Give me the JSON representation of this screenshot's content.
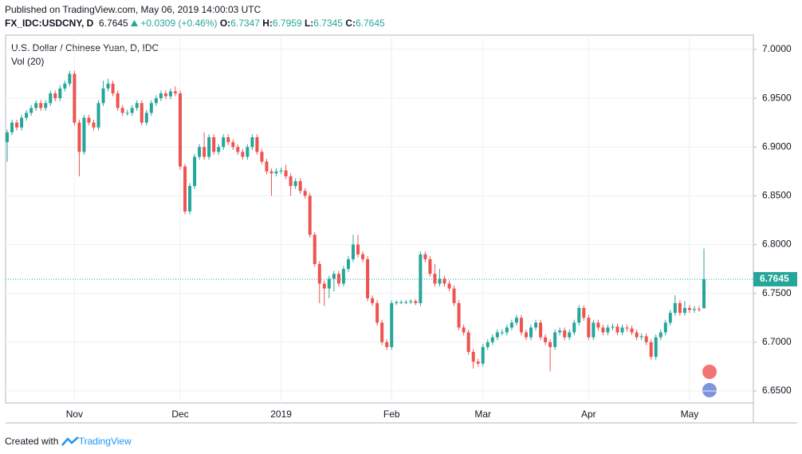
{
  "header": {
    "published": "Published on TradingView.com, May 06, 2019 14:00:03 UTC",
    "symbol": "FX_IDC:USDCNY, D",
    "change": "+0.0309 (+0.46%)",
    "o": "O:",
    "h": "H:",
    "l": "L:",
    "c": "C:"
  },
  "footer": {
    "created": "Created with",
    "brand": "TradingView"
  },
  "chart_data": {
    "type": "candlestick",
    "title": "U.S. Dollar / Chinese Yuan, D, IDC",
    "indicator": "Vol (20)",
    "colors": {
      "up": "#26a69a",
      "down": "#ef5350"
    },
    "grid": true,
    "last_price_line": true,
    "ylim": [
      6.6377,
      7.0147
    ],
    "yticks": [
      {
        "value": 6.65,
        "label": "6.6500"
      },
      {
        "value": 6.7,
        "label": "6.7000"
      },
      {
        "value": 6.75,
        "label": "6.7500"
      },
      {
        "value": 6.8,
        "label": "6.8000"
      },
      {
        "value": 6.85,
        "label": "6.8500"
      },
      {
        "value": 6.9,
        "label": "6.9000"
      },
      {
        "value": 6.95,
        "label": "6.9500"
      },
      {
        "value": 7.0,
        "label": "7.0000"
      }
    ],
    "categories": [
      null,
      null,
      null,
      null,
      null,
      null,
      null,
      null,
      null,
      null,
      null,
      null,
      null,
      null,
      "Nov",
      null,
      null,
      null,
      null,
      null,
      null,
      null,
      null,
      null,
      null,
      null,
      null,
      null,
      null,
      null,
      null,
      null,
      null,
      null,
      null,
      null,
      "Dec",
      null,
      null,
      null,
      null,
      null,
      null,
      null,
      null,
      null,
      null,
      null,
      null,
      null,
      null,
      null,
      null,
      null,
      null,
      null,
      null,
      "2019",
      null,
      null,
      null,
      null,
      null,
      null,
      null,
      null,
      null,
      null,
      null,
      null,
      null,
      null,
      null,
      null,
      null,
      null,
      null,
      null,
      null,
      null,
      "Feb",
      null,
      null,
      null,
      null,
      null,
      null,
      null,
      null,
      null,
      null,
      null,
      null,
      null,
      null,
      null,
      null,
      null,
      null,
      "Mar",
      null,
      null,
      null,
      null,
      null,
      null,
      null,
      null,
      null,
      null,
      null,
      null,
      null,
      null,
      null,
      null,
      null,
      null,
      null,
      null,
      null,
      "Apr",
      null,
      null,
      null,
      null,
      null,
      null,
      null,
      null,
      null,
      null,
      null,
      null,
      null,
      null,
      null,
      null,
      null,
      null,
      null,
      null,
      "May",
      null,
      null,
      null
    ],
    "open": [
      6.905,
      6.915,
      6.925,
      6.92,
      6.93,
      6.935,
      6.94,
      6.945,
      6.94,
      6.945,
      6.955,
      6.95,
      6.96,
      6.965,
      6.975,
      6.925,
      6.895,
      6.93,
      6.925,
      6.92,
      6.945,
      6.96,
      6.965,
      6.955,
      6.94,
      6.935,
      6.935,
      6.94,
      6.945,
      6.925,
      6.935,
      6.945,
      6.95,
      6.955,
      6.952,
      6.957,
      6.955,
      6.88,
      6.834,
      6.86,
      6.89,
      6.9,
      6.89,
      6.91,
      6.895,
      6.9,
      6.91,
      6.905,
      6.9,
      6.895,
      6.89,
      6.9,
      6.91,
      6.895,
      6.885,
      6.875,
      6.873,
      6.875,
      6.876,
      6.87,
      6.86,
      6.865,
      6.855,
      6.85,
      6.81,
      6.78,
      6.76,
      6.755,
      6.765,
      6.77,
      6.76,
      6.775,
      6.785,
      6.8,
      6.79,
      6.785,
      6.745,
      6.74,
      6.72,
      6.7,
      6.695,
      6.74,
      6.741,
      6.741,
      6.741,
      6.742,
      6.74,
      6.79,
      6.785,
      6.77,
      6.76,
      6.765,
      6.76,
      6.755,
      6.74,
      6.715,
      6.71,
      6.69,
      6.68,
      6.678,
      6.695,
      6.7,
      6.705,
      6.71,
      6.71,
      6.715,
      6.72,
      6.725,
      6.71,
      6.705,
      6.715,
      6.72,
      6.705,
      6.7,
      6.695,
      6.71,
      6.712,
      6.705,
      6.71,
      6.72,
      6.735,
      6.725,
      6.705,
      6.72,
      6.715,
      6.71,
      6.715,
      6.716,
      6.71,
      6.715,
      6.714,
      6.71,
      6.705,
      6.706,
      6.7,
      6.685,
      6.705,
      6.71,
      6.72,
      6.73,
      6.74,
      6.73,
      6.735,
      6.733,
      6.734,
      6.7347
    ],
    "high": [
      6.918,
      6.928,
      6.928,
      6.933,
      6.938,
      6.943,
      6.948,
      6.948,
      6.948,
      6.958,
      6.958,
      6.963,
      6.968,
      6.978,
      6.978,
      6.928,
      6.933,
      6.933,
      6.928,
      6.948,
      6.968,
      6.97,
      6.968,
      6.958,
      6.943,
      6.938,
      6.943,
      6.948,
      6.948,
      6.938,
      6.948,
      6.953,
      6.958,
      6.958,
      6.96,
      6.962,
      6.958,
      6.883,
      6.863,
      6.893,
      6.903,
      6.915,
      6.913,
      6.913,
      6.903,
      6.913,
      6.913,
      6.908,
      6.903,
      6.898,
      6.903,
      6.913,
      6.913,
      6.898,
      6.888,
      6.878,
      6.878,
      6.879,
      6.882,
      6.873,
      6.868,
      6.868,
      6.858,
      6.853,
      6.813,
      6.783,
      6.763,
      6.768,
      6.773,
      6.773,
      6.778,
      6.788,
      6.81,
      6.81,
      6.793,
      6.788,
      6.748,
      6.743,
      6.723,
      6.703,
      6.743,
      6.743,
      6.743,
      6.743,
      6.744,
      6.744,
      6.793,
      6.793,
      6.788,
      6.78,
      6.775,
      6.768,
      6.763,
      6.758,
      6.743,
      6.718,
      6.713,
      6.693,
      6.683,
      6.698,
      6.703,
      6.708,
      6.713,
      6.713,
      6.718,
      6.723,
      6.728,
      6.728,
      6.713,
      6.718,
      6.723,
      6.723,
      6.708,
      6.703,
      6.713,
      6.715,
      6.715,
      6.713,
      6.723,
      6.738,
      6.738,
      6.728,
      6.723,
      6.723,
      6.718,
      6.718,
      6.719,
      6.719,
      6.718,
      6.718,
      6.717,
      6.713,
      6.709,
      6.709,
      6.703,
      6.708,
      6.713,
      6.723,
      6.733,
      6.748,
      6.743,
      6.742,
      6.738,
      6.737,
      6.737,
      6.7959
    ],
    "low": [
      6.885,
      6.912,
      6.917,
      6.917,
      6.927,
      6.932,
      6.937,
      6.937,
      6.937,
      6.942,
      6.947,
      6.947,
      6.957,
      6.962,
      6.922,
      6.87,
      6.892,
      6.922,
      6.917,
      6.917,
      6.942,
      6.957,
      6.952,
      6.937,
      6.932,
      6.932,
      6.932,
      6.937,
      6.922,
      6.922,
      6.932,
      6.942,
      6.947,
      6.949,
      6.949,
      6.952,
      6.877,
      6.831,
      6.831,
      6.857,
      6.887,
      6.887,
      6.887,
      6.892,
      6.892,
      6.897,
      6.902,
      6.897,
      6.892,
      6.887,
      6.887,
      6.897,
      6.892,
      6.882,
      6.872,
      6.85,
      6.87,
      6.872,
      6.867,
      6.85,
      6.857,
      6.852,
      6.847,
      6.807,
      6.777,
      6.74,
      6.737,
      6.745,
      6.752,
      6.757,
      6.757,
      6.772,
      6.782,
      6.787,
      6.782,
      6.742,
      6.737,
      6.717,
      6.697,
      6.692,
      6.692,
      6.738,
      6.739,
      6.739,
      6.739,
      6.738,
      6.737,
      6.782,
      6.767,
      6.757,
      6.757,
      6.757,
      6.752,
      6.737,
      6.712,
      6.707,
      6.687,
      6.673,
      6.675,
      6.675,
      6.692,
      6.697,
      6.702,
      6.707,
      6.707,
      6.712,
      6.717,
      6.707,
      6.702,
      6.702,
      6.712,
      6.702,
      6.697,
      6.67,
      6.692,
      6.707,
      6.702,
      6.702,
      6.707,
      6.717,
      6.722,
      6.702,
      6.702,
      6.712,
      6.707,
      6.707,
      6.712,
      6.707,
      6.707,
      6.711,
      6.707,
      6.702,
      6.702,
      6.697,
      6.682,
      6.682,
      6.702,
      6.707,
      6.717,
      6.727,
      6.727,
      6.727,
      6.73,
      6.73,
      6.731,
      6.7345
    ],
    "close": [
      6.915,
      6.925,
      6.92,
      6.93,
      6.935,
      6.94,
      6.945,
      6.94,
      6.945,
      6.955,
      6.95,
      6.96,
      6.965,
      6.975,
      6.925,
      6.895,
      6.93,
      6.925,
      6.92,
      6.945,
      6.96,
      6.965,
      6.955,
      6.94,
      6.935,
      6.935,
      6.94,
      6.945,
      6.925,
      6.935,
      6.945,
      6.95,
      6.955,
      6.952,
      6.957,
      6.955,
      6.88,
      6.834,
      6.86,
      6.89,
      6.9,
      6.89,
      6.91,
      6.895,
      6.9,
      6.91,
      6.905,
      6.9,
      6.895,
      6.89,
      6.9,
      6.91,
      6.895,
      6.885,
      6.875,
      6.873,
      6.875,
      6.876,
      6.87,
      6.86,
      6.865,
      6.855,
      6.85,
      6.81,
      6.78,
      6.76,
      6.755,
      6.765,
      6.77,
      6.76,
      6.775,
      6.785,
      6.8,
      6.79,
      6.785,
      6.745,
      6.74,
      6.72,
      6.7,
      6.695,
      6.74,
      6.741,
      6.741,
      6.741,
      6.742,
      6.74,
      6.79,
      6.785,
      6.77,
      6.76,
      6.765,
      6.76,
      6.755,
      6.74,
      6.715,
      6.71,
      6.69,
      6.68,
      6.678,
      6.695,
      6.7,
      6.705,
      6.71,
      6.71,
      6.715,
      6.72,
      6.725,
      6.71,
      6.705,
      6.715,
      6.72,
      6.705,
      6.7,
      6.695,
      6.71,
      6.712,
      6.705,
      6.71,
      6.72,
      6.735,
      6.725,
      6.705,
      6.72,
      6.715,
      6.71,
      6.715,
      6.716,
      6.71,
      6.715,
      6.714,
      6.71,
      6.705,
      6.706,
      6.7,
      6.685,
      6.705,
      6.71,
      6.72,
      6.73,
      6.74,
      6.73,
      6.735,
      6.733,
      6.734,
      6.7336,
      6.7645
    ]
  }
}
